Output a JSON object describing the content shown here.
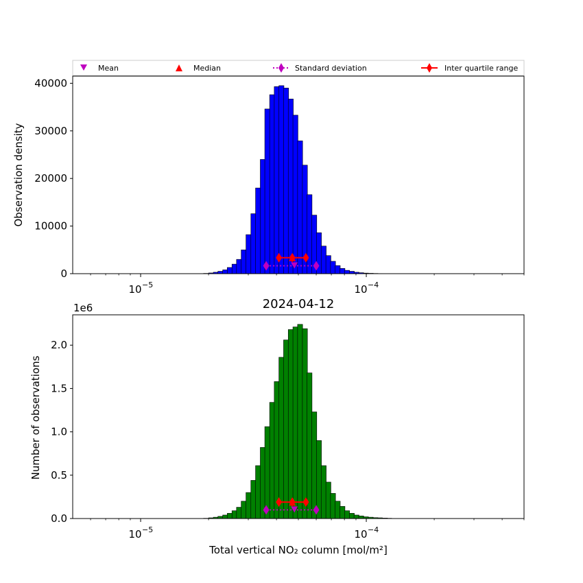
{
  "chart_data": [
    {
      "type": "bar",
      "panel": "top",
      "title": "",
      "xlabel": "",
      "ylabel": "Observation density",
      "xscale": "log",
      "xlim": [
        5e-06,
        0.0005
      ],
      "ylim": [
        0,
        41500
      ],
      "yticks": [
        0,
        10000,
        20000,
        30000,
        40000
      ],
      "ytick_labels": [
        "0",
        "10000",
        "20000",
        "30000",
        "40000"
      ],
      "xtick_labels": [
        {
          "base": "10",
          "exp": "−5",
          "value": 1e-05
        },
        {
          "base": "10",
          "exp": "−4",
          "value": 0.0001
        }
      ],
      "bar_color": "#0000ff",
      "bins": {
        "x": [
          1.9e-05,
          2e-05,
          2.1e-05,
          2.2e-05,
          2.31e-05,
          2.42e-05,
          2.54e-05,
          2.66e-05,
          2.79e-05,
          2.93e-05,
          3.08e-05,
          3.23e-05,
          3.39e-05,
          3.55e-05,
          3.73e-05,
          3.91e-05,
          4.1e-05,
          4.3e-05,
          4.51e-05,
          4.73e-05,
          4.96e-05,
          5.21e-05,
          5.46e-05,
          5.73e-05,
          6.01e-05,
          6.31e-05,
          6.62e-05,
          6.94e-05,
          7.28e-05,
          7.64e-05,
          8.01e-05,
          8.41e-05,
          8.82e-05,
          9.25e-05,
          9.71e-05,
          0.000102,
          0.000107,
          0.000112,
          0.000118,
          0.000123
        ],
        "values": [
          60,
          150,
          300,
          500,
          800,
          1300,
          2000,
          3000,
          5000,
          8200,
          12600,
          18000,
          24000,
          34600,
          37600,
          39300,
          39500,
          39000,
          36700,
          33300,
          27900,
          22800,
          16600,
          12300,
          8600,
          5800,
          3800,
          2600,
          1700,
          1100,
          700,
          500,
          300,
          200,
          120,
          80,
          50,
          30,
          20,
          10
        ]
      },
      "markers": {
        "mean": {
          "x": 4.8e-05,
          "y": 1650
        },
        "median": {
          "x": 4.7e-05,
          "y": 3200
        },
        "std_dev": {
          "x": [
            3.6e-05,
            6e-05
          ],
          "y": 1650
        },
        "iqr": {
          "x": [
            4.1e-05,
            4.7e-05,
            5.4e-05
          ],
          "y": 3350
        }
      }
    },
    {
      "type": "bar",
      "panel": "bottom",
      "title": "2024-04-12",
      "xlabel": "Total vertical NO₂ column [mol/m²]",
      "ylabel": "Number of observations",
      "offset_label": "1e6",
      "xscale": "log",
      "xlim": [
        5e-06,
        0.0005
      ],
      "ylim": [
        0,
        2.35
      ],
      "yticks": [
        0,
        0.5,
        1.0,
        1.5,
        2.0
      ],
      "ytick_labels": [
        "0.0",
        "0.5",
        "1.0",
        "1.5",
        "2.0"
      ],
      "xtick_labels": [
        {
          "base": "10",
          "exp": "−5",
          "value": 1e-05
        },
        {
          "base": "10",
          "exp": "−4",
          "value": 0.0001
        }
      ],
      "bar_color": "#008000",
      "bins": {
        "x": [
          1.9e-05,
          2e-05,
          2.1e-05,
          2.2e-05,
          2.31e-05,
          2.42e-05,
          2.54e-05,
          2.66e-05,
          2.79e-05,
          2.93e-05,
          3.08e-05,
          3.23e-05,
          3.39e-05,
          3.55e-05,
          3.73e-05,
          3.91e-05,
          4.1e-05,
          4.3e-05,
          4.51e-05,
          4.73e-05,
          4.96e-05,
          5.21e-05,
          5.46e-05,
          5.73e-05,
          6.01e-05,
          6.31e-05,
          6.62e-05,
          6.94e-05,
          7.28e-05,
          7.64e-05,
          8.01e-05,
          8.41e-05,
          8.82e-05,
          9.25e-05,
          9.71e-05,
          0.000102,
          0.000107,
          0.000112,
          0.000118,
          0.000123
        ],
        "values": [
          0.003,
          0.008,
          0.015,
          0.025,
          0.04,
          0.06,
          0.09,
          0.13,
          0.2,
          0.3,
          0.44,
          0.61,
          0.82,
          1.06,
          1.34,
          1.58,
          1.86,
          2.06,
          2.18,
          2.21,
          2.24,
          2.19,
          1.68,
          1.23,
          0.9,
          0.61,
          0.42,
          0.29,
          0.2,
          0.14,
          0.09,
          0.06,
          0.04,
          0.03,
          0.02,
          0.015,
          0.01,
          0.008,
          0.005,
          0.003
        ]
      },
      "markers": {
        "mean": {
          "x": 4.8e-05,
          "y": 0.1
        },
        "median": {
          "x": 4.7e-05,
          "y": 0.18
        },
        "std_dev": {
          "x": [
            3.6e-05,
            6e-05
          ],
          "y": 0.1
        },
        "iqr": {
          "x": [
            4.1e-05,
            4.7e-05,
            5.4e-05
          ],
          "y": 0.19
        }
      }
    }
  ],
  "legend": {
    "placement": "top, above upper panel",
    "entries": [
      {
        "label": "Mean",
        "symbol": "triangle-down",
        "color": "#bf00bf"
      },
      {
        "label": "Median",
        "symbol": "triangle-up",
        "color": "#ff0000"
      },
      {
        "label": "Standard deviation",
        "symbol": "diamond-dotted-line",
        "color": "#bf00bf"
      },
      {
        "label": "Inter quartile range",
        "symbol": "diamond-solid-line",
        "color": "#ff0000"
      }
    ]
  }
}
